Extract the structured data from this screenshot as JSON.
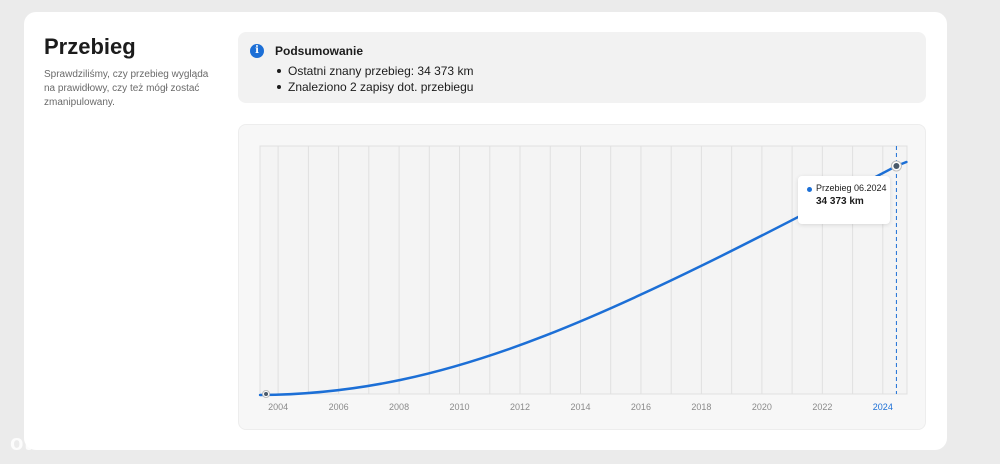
{
  "header": {
    "title": "Przebieg",
    "description": "Sprawdziliśmy, czy przebieg wygląda na prawidłowy, czy też mógł zostać zmanipulowany."
  },
  "summary": {
    "icon": "info-icon",
    "title": "Podsumowanie",
    "items": [
      "Ostatni znany przebieg: 34 373 km",
      "Znaleziono 2 zapisy dot. przebiegu"
    ]
  },
  "tooltip": {
    "label": "Przebieg 06.2024",
    "value": "34 373 km"
  },
  "watermark": "otoMoto",
  "colors": {
    "accent": "#1c6fd6",
    "grid": "#e0e0e0",
    "tick": "#8a8a8a"
  },
  "chart_data": {
    "type": "line",
    "title": "",
    "xlabel": "",
    "ylabel": "",
    "x_ticks": [
      "2004",
      "2006",
      "2008",
      "2010",
      "2012",
      "2014",
      "2016",
      "2018",
      "2020",
      "2022",
      "2024"
    ],
    "highlighted_tick": "2024",
    "xlim": [
      2003.4,
      2024.8
    ],
    "ylim": [
      0,
      34373
    ],
    "grid": true,
    "series": [
      {
        "name": "Przebieg",
        "points": [
          {
            "x": 2003.6,
            "y": 0,
            "label": ""
          },
          {
            "x": 2024.45,
            "y": 34373,
            "label": "Przebieg 06.2024"
          }
        ]
      }
    ]
  }
}
